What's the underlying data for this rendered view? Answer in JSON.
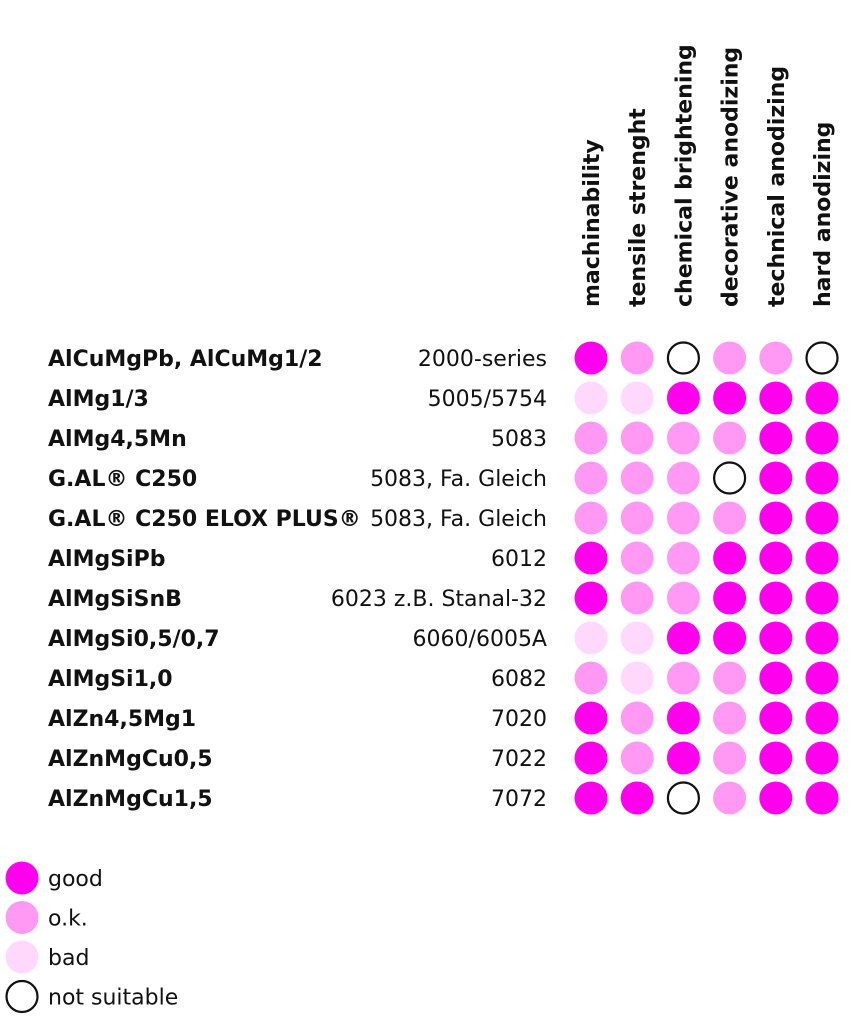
{
  "chart_data": {
    "type": "table",
    "columns": [
      "machinability",
      "tensile strenght",
      "chemical brightening",
      "decorative anodizing",
      "technical anodizing",
      "hard anodizing"
    ],
    "rows": [
      {
        "alloy": "AlCuMgPb, AlCuMg1/2",
        "code": "2000-series",
        "ratings": [
          "good",
          "ok",
          "not_suitable",
          "ok",
          "ok",
          "not_suitable"
        ]
      },
      {
        "alloy": "AlMg1/3",
        "code": "5005/5754",
        "ratings": [
          "bad",
          "bad",
          "good",
          "good",
          "good",
          "good"
        ]
      },
      {
        "alloy": "AlMg4,5Mn",
        "code": "5083",
        "ratings": [
          "ok",
          "ok",
          "ok",
          "ok",
          "good",
          "good"
        ]
      },
      {
        "alloy": "G.AL® C250",
        "code": "5083, Fa. Gleich",
        "ratings": [
          "ok",
          "ok",
          "ok",
          "not_suitable",
          "good",
          "good"
        ]
      },
      {
        "alloy": "G.AL® C250 ELOX PLUS®",
        "code": "5083, Fa. Gleich",
        "ratings": [
          "ok",
          "ok",
          "ok",
          "ok",
          "good",
          "good"
        ]
      },
      {
        "alloy": "AlMgSiPb",
        "code": "6012",
        "ratings": [
          "good",
          "ok",
          "ok",
          "good",
          "good",
          "good"
        ]
      },
      {
        "alloy": "AlMgSiSnB",
        "code": "6023  z.B. Stanal-32",
        "ratings": [
          "good",
          "ok",
          "ok",
          "good",
          "good",
          "good"
        ]
      },
      {
        "alloy": "AlMgSi0,5/0,7",
        "code": "6060/6005A",
        "ratings": [
          "bad",
          "bad",
          "good",
          "good",
          "good",
          "good"
        ]
      },
      {
        "alloy": "AlMgSi1,0",
        "code": "6082",
        "ratings": [
          "ok",
          "bad",
          "ok",
          "ok",
          "good",
          "good"
        ]
      },
      {
        "alloy": "AlZn4,5Mg1",
        "code": "7020",
        "ratings": [
          "good",
          "ok",
          "good",
          "ok",
          "good",
          "good"
        ]
      },
      {
        "alloy": "AlZnMgCu0,5",
        "code": "7022",
        "ratings": [
          "good",
          "ok",
          "good",
          "ok",
          "good",
          "good"
        ]
      },
      {
        "alloy": "AlZnMgCu1,5",
        "code": "7072",
        "ratings": [
          "good",
          "good",
          "not_suitable",
          "ok",
          "good",
          "good"
        ]
      }
    ],
    "legend": [
      {
        "key": "good",
        "label": "good"
      },
      {
        "key": "ok",
        "label": "o.k."
      },
      {
        "key": "bad",
        "label": "bad"
      },
      {
        "key": "not_suitable",
        "label": "not suitable"
      }
    ],
    "colors": {
      "good": "#ff00ee",
      "ok": "#ff99f4",
      "bad": "#ffd8fb",
      "not_suitable": "#ffffff",
      "outline": "#111111"
    }
  }
}
